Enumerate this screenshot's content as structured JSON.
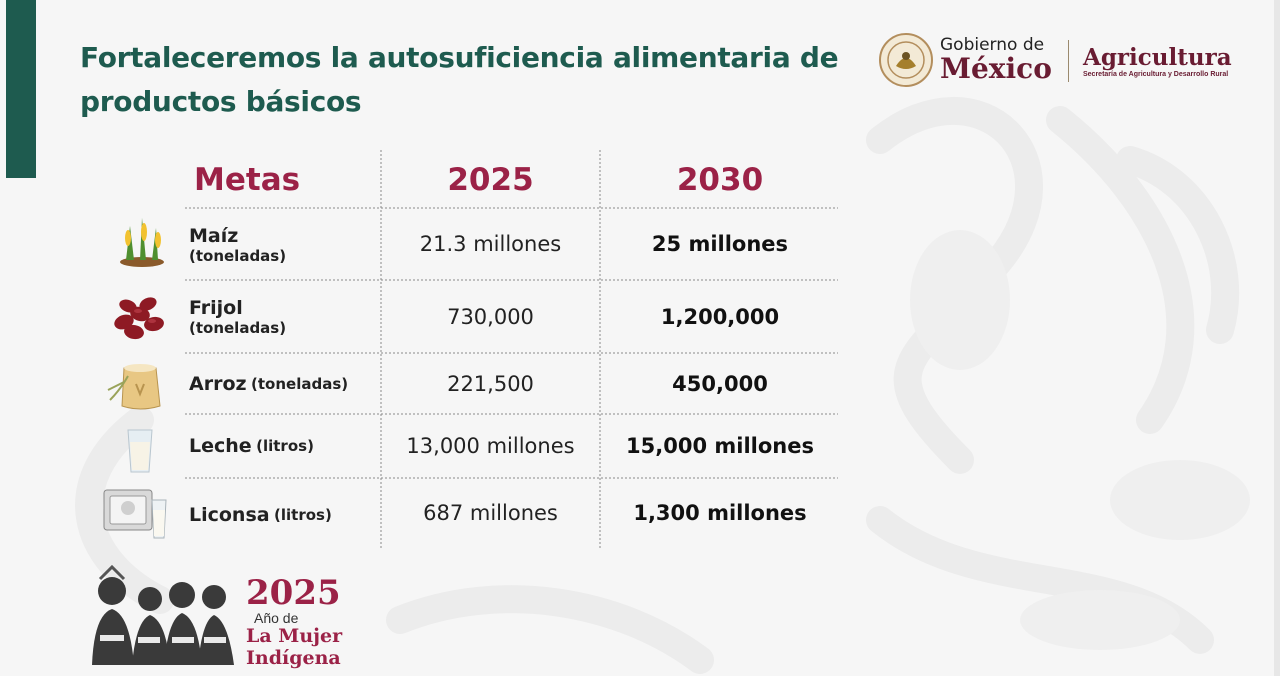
{
  "slide": {
    "title_line1": "Fortaleceremos la autosuficiencia alimentaria de",
    "title_line2": "productos básicos"
  },
  "header_logo": {
    "gobierno": "Gobierno de",
    "mexico": "México",
    "agricultura": "Agricultura",
    "secretaria": "Secretaría de Agricultura y Desarrollo Rural"
  },
  "table": {
    "headers": [
      "Metas",
      "2025",
      "2030"
    ],
    "rows": [
      {
        "icon": "corn-icon",
        "label": "Maíz",
        "unit": "(toneladas)",
        "v2025": "21.3 millones",
        "v2030": "25 millones"
      },
      {
        "icon": "beans-icon",
        "label": "Frijol",
        "unit": "(toneladas)",
        "v2025": "730,000",
        "v2030": "1,200,000"
      },
      {
        "icon": "rice-sack-icon",
        "label": "Arroz",
        "unit": "(toneladas)",
        "v2025": "221,500",
        "v2030": "450,000"
      },
      {
        "icon": "milk-glass-icon",
        "label": "Leche",
        "unit": "(litros)",
        "v2025": "13,000 millones",
        "v2030": "15,000 millones"
      },
      {
        "icon": "liconsa-milk-icon",
        "label": "Liconsa",
        "unit": "(litros)",
        "v2025": "687 millones",
        "v2030": "1,300 millones"
      }
    ]
  },
  "footer_logo": {
    "year": "2025",
    "line1": "Año de",
    "line2": "La Mujer",
    "line3": "Indígena"
  },
  "colors": {
    "green": "#1e5b4f",
    "guinda": "#9b2247",
    "dark_guinda": "#691c32"
  }
}
